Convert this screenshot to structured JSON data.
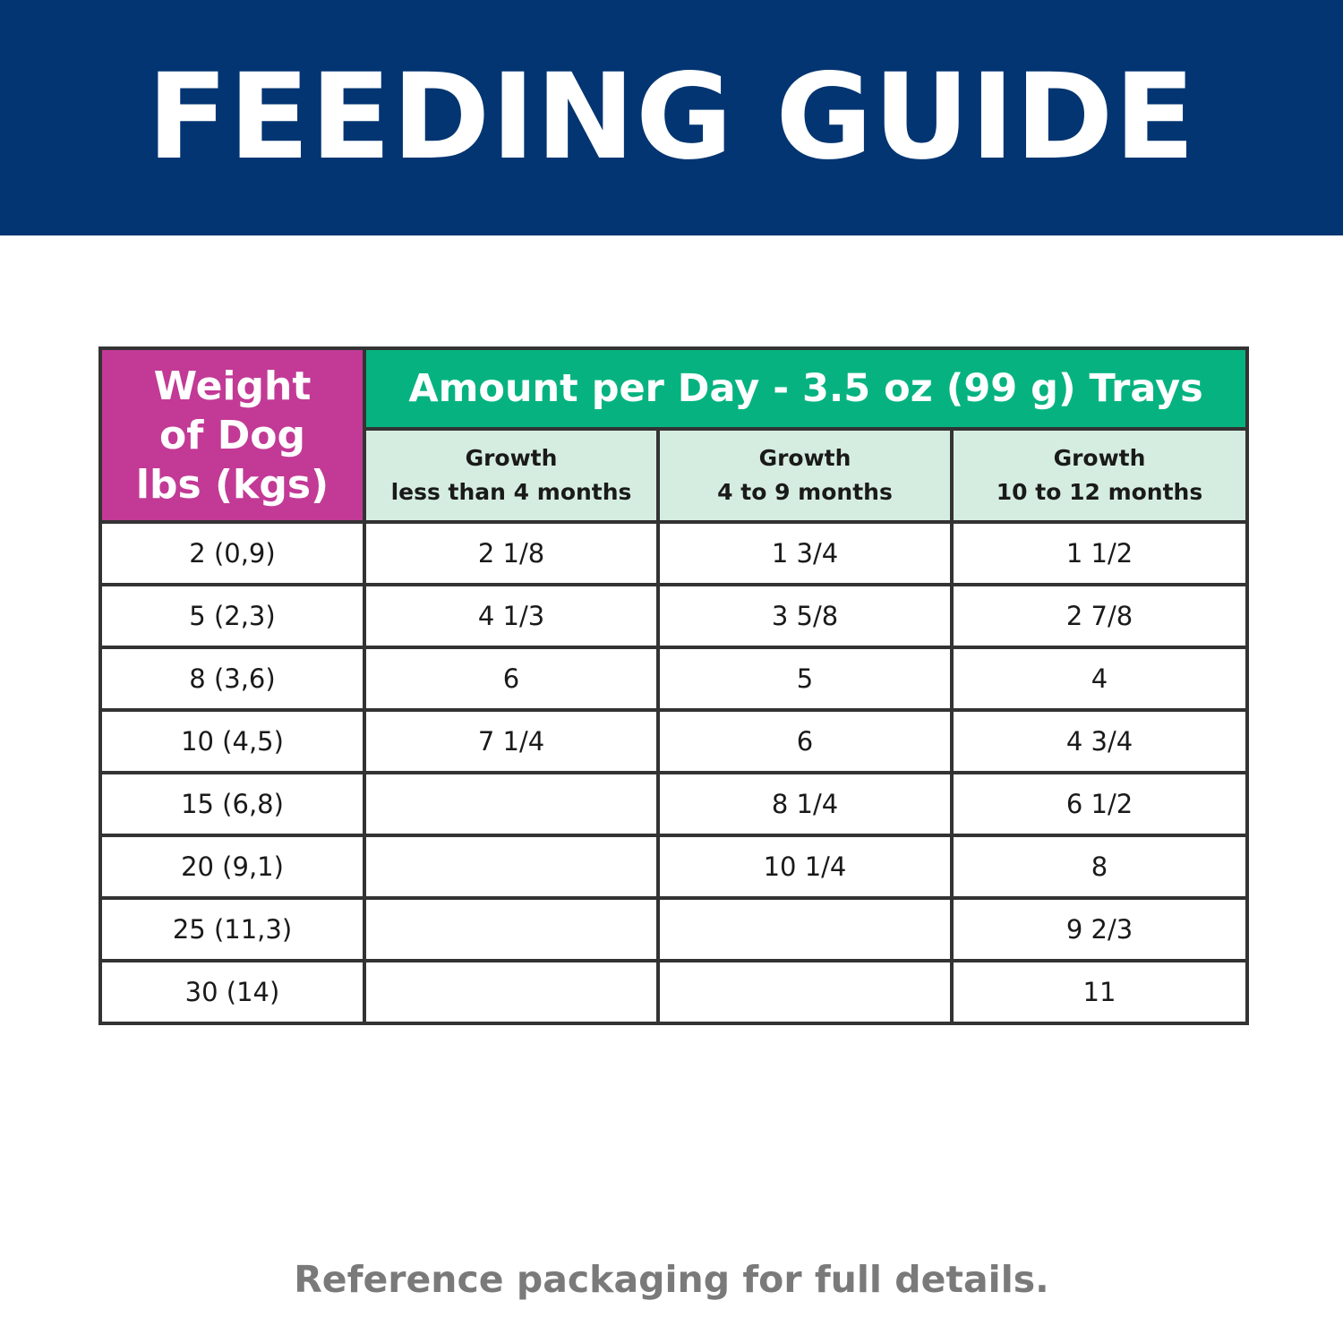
{
  "colors": {
    "banner_bg": "#033572",
    "weight_head_bg": "#c23a96",
    "amount_head_bg": "#06b380",
    "sub_head_bg": "#d5ede1",
    "footer_text": "#7a7a7a"
  },
  "banner": {
    "title": "FEEDING GUIDE"
  },
  "table": {
    "weight_header": [
      "Weight",
      "of Dog",
      "lbs (kgs)"
    ],
    "amount_header": "Amount per Day - 3.5 oz (99 g) Trays",
    "sub_headers": [
      {
        "line1": "Growth",
        "line2": "less than 4 months"
      },
      {
        "line1": "Growth",
        "line2": "4 to 9 months"
      },
      {
        "line1": "Growth",
        "line2": "10 to 12 months"
      }
    ],
    "rows": [
      {
        "weight": "2 (0,9)",
        "a": "2 1/8",
        "b": "1 3/4",
        "c": "1 1/2"
      },
      {
        "weight": "5 (2,3)",
        "a": "4 1/3",
        "b": "3 5/8",
        "c": "2 7/8"
      },
      {
        "weight": "8 (3,6)",
        "a": "6",
        "b": "5",
        "c": "4"
      },
      {
        "weight": "10 (4,5)",
        "a": "7 1/4",
        "b": "6",
        "c": "4 3/4"
      },
      {
        "weight": "15 (6,8)",
        "a": "",
        "b": "8 1/4",
        "c": "6 1/2"
      },
      {
        "weight": "20 (9,1)",
        "a": "",
        "b": "10 1/4",
        "c": "8"
      },
      {
        "weight": "25 (11,3)",
        "a": "",
        "b": "",
        "c": "9 2/3"
      },
      {
        "weight": "30 (14)",
        "a": "",
        "b": "",
        "c": "11"
      }
    ]
  },
  "footer": {
    "note": "Reference packaging for full details."
  }
}
